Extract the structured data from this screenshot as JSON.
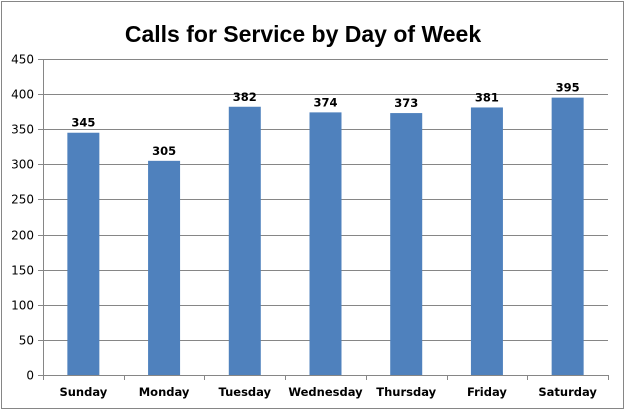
{
  "chart_data": {
    "type": "bar",
    "title": "Calls for Service by Day of Week",
    "xlabel": "",
    "ylabel": "",
    "categories": [
      "Sunday",
      "Monday",
      "Tuesday",
      "Wednesday",
      "Thursday",
      "Friday",
      "Saturday"
    ],
    "values": [
      345,
      305,
      382,
      374,
      373,
      381,
      395
    ],
    "data_labels": [
      "345",
      "305",
      "382",
      "374",
      "373",
      "381",
      "395"
    ],
    "ylim": [
      0,
      450
    ],
    "y_ticks": [
      0,
      50,
      100,
      150,
      200,
      250,
      300,
      350,
      400,
      450
    ],
    "grid": true,
    "legend": "none",
    "bar_color": "#4F81BD"
  }
}
